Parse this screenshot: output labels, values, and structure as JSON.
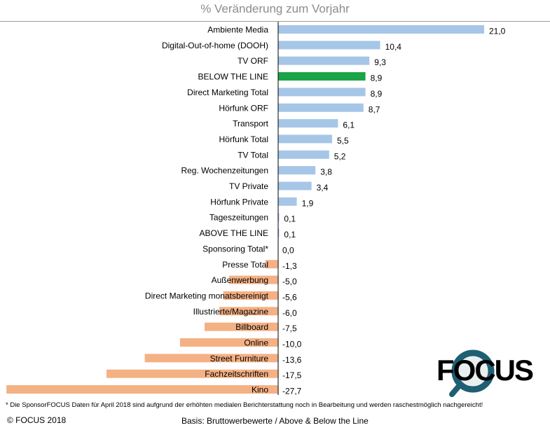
{
  "chart_data": {
    "type": "bar",
    "orientation": "horizontal",
    "title": "% Veränderung zum Vorjahr",
    "categories": [
      "Ambiente Media",
      "Digital-Out-of-home (DOOH)",
      "TV ORF",
      "BELOW THE LINE",
      "Direct Marketing Total",
      "Hörfunk ORF",
      "Transport",
      "Hörfunk Total",
      "TV Total",
      "Reg. Wochenzeitungen",
      "TV Private",
      "Hörfunk Private",
      "Tageszeitungen",
      "ABOVE THE LINE",
      "Sponsoring Total*",
      "Presse Total",
      "Außenwerbung",
      "Direct Marketing monatsbereinigt",
      "Illustrierte/Magazine",
      "Billboard",
      "Online",
      "Street Furniture",
      "Fachzeitschriften",
      "Kino"
    ],
    "values": [
      21.0,
      10.4,
      9.3,
      8.9,
      8.9,
      8.7,
      6.1,
      5.5,
      5.2,
      3.8,
      3.4,
      1.9,
      0.1,
      0.1,
      0.0,
      -1.3,
      -5.0,
      -5.6,
      -6.0,
      -7.5,
      -10.0,
      -13.6,
      -17.5,
      -27.7
    ],
    "value_labels": [
      "21,0",
      "10,4",
      "9,3",
      "8,9",
      "8,9",
      "8,7",
      "6,1",
      "5,5",
      "5,2",
      "3,8",
      "3,4",
      "1,9",
      "0,1",
      "0,1",
      "0,0",
      "-1,3",
      "-5,0",
      "-5,6",
      "-6,0",
      "-7,5",
      "-10,0",
      "-13,6",
      "-17,5",
      "-27,7"
    ],
    "highlight_category": "BELOW THE LINE",
    "xlim": [
      -28.3,
      21.0
    ],
    "colors": {
      "positive": "#a6c6e8",
      "negative": "#f4b184",
      "highlight": "#1aa447",
      "axis": "#000000"
    },
    "grid": false
  },
  "footnote": "* Die SponsorFOCUS Daten  für April 2018 sind aufgrund der erhöhten medialen  Berichterstattung noch in Bearbeitung und werden raschestmöglich nachgereicht!",
  "copyright": "© FOCUS 2018",
  "basis": "Basis: Bruttowerbewerte / Above & Below the Line",
  "logo": {
    "text": "FOCUS",
    "colors": {
      "letters": "#000000",
      "ring": "#1f5f73",
      "lens": "#e9eef0"
    }
  }
}
